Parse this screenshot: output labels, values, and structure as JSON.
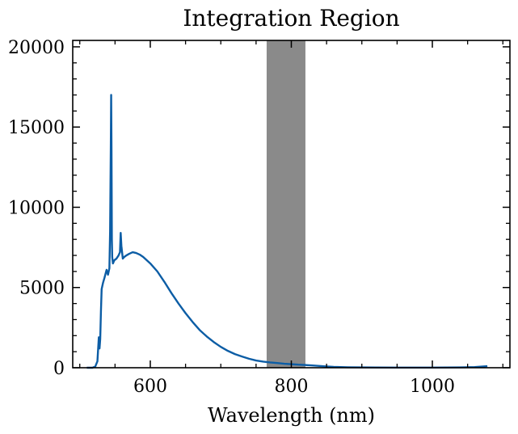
{
  "chart_data": {
    "type": "line",
    "title": "Integration Region",
    "xlabel": "Wavelength (nm)",
    "ylabel": "",
    "xlim": [
      490,
      1110
    ],
    "ylim": [
      0,
      20400
    ],
    "x_ticks": [
      600,
      800,
      1000
    ],
    "y_ticks": [
      0,
      5000,
      10000,
      15000,
      20000
    ],
    "x_tick_labels": [
      "600",
      "800",
      "1000"
    ],
    "y_tick_labels": [
      "0",
      "5000",
      "10000",
      "15000",
      "20000"
    ],
    "x_minor_step": 50,
    "y_minor_step": 1000,
    "grid": false,
    "line_color": "#0c5da5",
    "band_color": "#808080",
    "shaded_region": {
      "x_start": 765,
      "x_end": 820
    },
    "series": [
      {
        "x": [
          510,
          518,
          522,
          525,
          527,
          528,
          529,
          530,
          531,
          533,
          535,
          538,
          540,
          542,
          543,
          544,
          544.5,
          545,
          545.5,
          546,
          547,
          549,
          552,
          555,
          557,
          558,
          559,
          561,
          563,
          566,
          570,
          575,
          580,
          585,
          590,
          595,
          600,
          610,
          620,
          630,
          640,
          650,
          660,
          670,
          680,
          690,
          700,
          710,
          720,
          730,
          740,
          750,
          760,
          770,
          780,
          790,
          800,
          810,
          820,
          830,
          840,
          850,
          860,
          870,
          880,
          900,
          920,
          950,
          1000,
          1040,
          1060,
          1070,
          1078
        ],
        "y": [
          0,
          0,
          80,
          400,
          1900,
          1200,
          1800,
          3500,
          4900,
          5300,
          5600,
          6100,
          5800,
          6200,
          8500,
          13800,
          17000,
          13500,
          8000,
          6900,
          6500,
          6700,
          6800,
          7000,
          7200,
          8400,
          7600,
          6800,
          6900,
          7000,
          7100,
          7200,
          7150,
          7050,
          6900,
          6700,
          6500,
          6000,
          5350,
          4650,
          4000,
          3400,
          2850,
          2350,
          1950,
          1600,
          1300,
          1050,
          850,
          700,
          560,
          450,
          380,
          330,
          290,
          250,
          220,
          190,
          170,
          140,
          110,
          80,
          55,
          40,
          30,
          20,
          15,
          10,
          10,
          20,
          40,
          70,
          100
        ]
      }
    ]
  }
}
